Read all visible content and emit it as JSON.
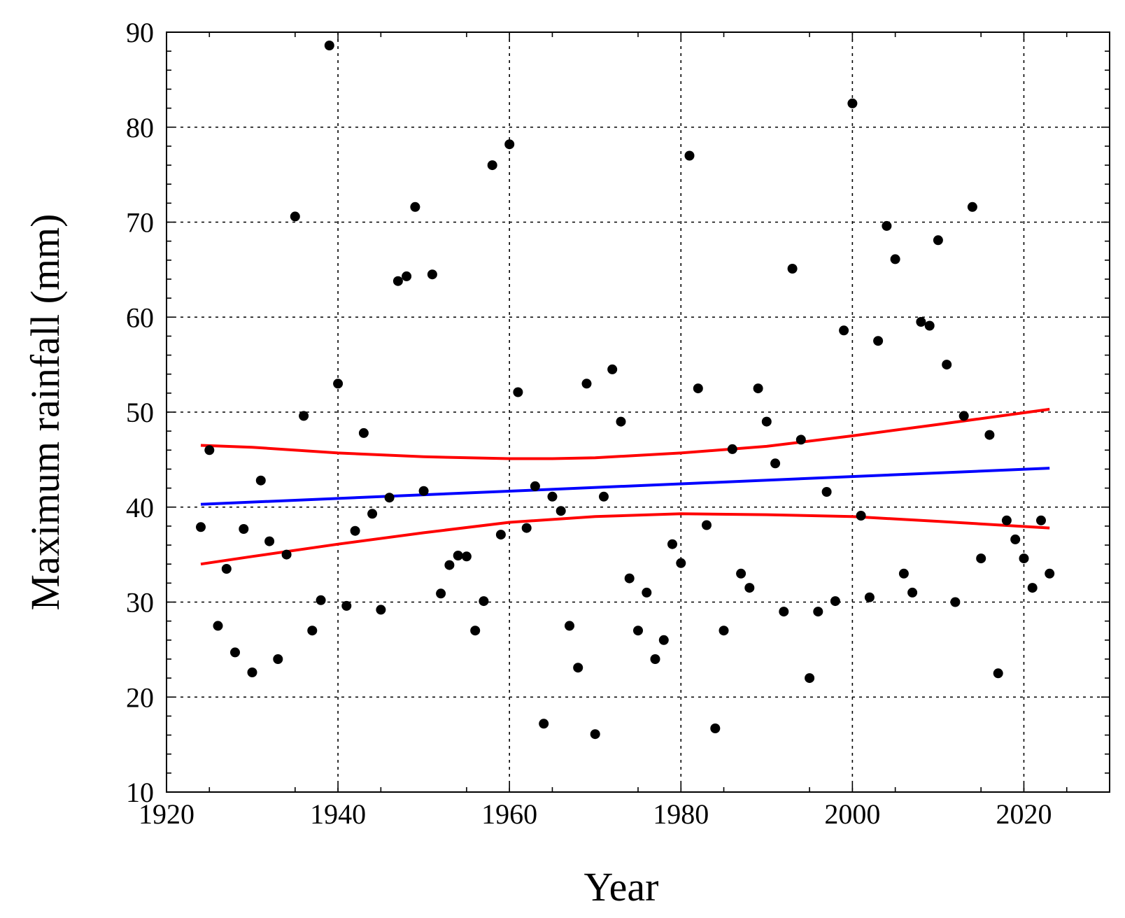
{
  "chart_data": {
    "type": "scatter",
    "title": "",
    "xlabel": "Year",
    "ylabel": "Maximum rainfall  (mm)",
    "xlim": [
      1920,
      2030
    ],
    "ylim": [
      10,
      90
    ],
    "xticks": [
      1920,
      1940,
      1960,
      1980,
      2000,
      2020
    ],
    "yticks": [
      10,
      20,
      30,
      40,
      50,
      60,
      70,
      80,
      90
    ],
    "grid": true,
    "legend": "none",
    "series": [
      {
        "kind": "scatter",
        "color": "#000000",
        "points": [
          [
            1924,
            37.9
          ],
          [
            1925,
            46.0
          ],
          [
            1926,
            27.5
          ],
          [
            1927,
            33.5
          ],
          [
            1928,
            24.7
          ],
          [
            1929,
            37.7
          ],
          [
            1930,
            22.6
          ],
          [
            1931,
            42.8
          ],
          [
            1932,
            36.4
          ],
          [
            1933,
            24.0
          ],
          [
            1934,
            35.0
          ],
          [
            1935,
            70.6
          ],
          [
            1936,
            49.6
          ],
          [
            1937,
            27.0
          ],
          [
            1938,
            30.2
          ],
          [
            1939,
            88.6
          ],
          [
            1940,
            53.0
          ],
          [
            1941,
            29.6
          ],
          [
            1942,
            37.5
          ],
          [
            1943,
            47.8
          ],
          [
            1944,
            39.3
          ],
          [
            1945,
            29.2
          ],
          [
            1946,
            41.0
          ],
          [
            1947,
            63.8
          ],
          [
            1948,
            64.3
          ],
          [
            1949,
            71.6
          ],
          [
            1950,
            41.7
          ],
          [
            1951,
            64.5
          ],
          [
            1952,
            30.9
          ],
          [
            1953,
            33.9
          ],
          [
            1954,
            34.9
          ],
          [
            1955,
            34.8
          ],
          [
            1956,
            27.0
          ],
          [
            1957,
            30.1
          ],
          [
            1958,
            76.0
          ],
          [
            1959,
            37.1
          ],
          [
            1960,
            78.2
          ],
          [
            1961,
            52.1
          ],
          [
            1962,
            37.8
          ],
          [
            1963,
            42.2
          ],
          [
            1964,
            17.2
          ],
          [
            1965,
            41.1
          ],
          [
            1966,
            39.6
          ],
          [
            1967,
            27.5
          ],
          [
            1968,
            23.1
          ],
          [
            1969,
            53.0
          ],
          [
            1970,
            16.1
          ],
          [
            1971,
            41.1
          ],
          [
            1972,
            54.5
          ],
          [
            1973,
            49.0
          ],
          [
            1974,
            32.5
          ],
          [
            1975,
            27.0
          ],
          [
            1976,
            31.0
          ],
          [
            1977,
            24.0
          ],
          [
            1978,
            26.0
          ],
          [
            1979,
            36.1
          ],
          [
            1980,
            34.1
          ],
          [
            1981,
            77.0
          ],
          [
            1982,
            52.5
          ],
          [
            1983,
            38.1
          ],
          [
            1984,
            16.7
          ],
          [
            1985,
            27.0
          ],
          [
            1986,
            46.1
          ],
          [
            1987,
            33.0
          ],
          [
            1988,
            31.5
          ],
          [
            1989,
            52.5
          ],
          [
            1990,
            49.0
          ],
          [
            1991,
            44.6
          ],
          [
            1992,
            29.0
          ],
          [
            1993,
            65.1
          ],
          [
            1994,
            47.1
          ],
          [
            1995,
            22.0
          ],
          [
            1996,
            29.0
          ],
          [
            1997,
            41.6
          ],
          [
            1998,
            30.1
          ],
          [
            1999,
            58.6
          ],
          [
            2000,
            82.5
          ],
          [
            2001,
            39.1
          ],
          [
            2002,
            30.5
          ],
          [
            2003,
            57.5
          ],
          [
            2004,
            69.6
          ],
          [
            2005,
            66.1
          ],
          [
            2006,
            33.0
          ],
          [
            2007,
            31.0
          ],
          [
            2008,
            59.5
          ],
          [
            2009,
            59.1
          ],
          [
            2010,
            68.1
          ],
          [
            2011,
            55.0
          ],
          [
            2012,
            30.0
          ],
          [
            2013,
            49.6
          ],
          [
            2014,
            71.6
          ],
          [
            2015,
            34.6
          ],
          [
            2016,
            47.6
          ],
          [
            2017,
            22.5
          ],
          [
            2018,
            38.6
          ],
          [
            2019,
            36.6
          ],
          [
            2020,
            34.6
          ],
          [
            2021,
            31.5
          ],
          [
            2022,
            38.6
          ],
          [
            2023,
            33.0
          ]
        ]
      },
      {
        "kind": "line",
        "color": "#0000ff",
        "points": [
          [
            1924,
            40.3
          ],
          [
            2023,
            44.1
          ]
        ]
      },
      {
        "kind": "line",
        "color": "#ff0000",
        "points": [
          [
            1924,
            46.5
          ],
          [
            1930,
            46.3
          ],
          [
            1940,
            45.7
          ],
          [
            1950,
            45.3
          ],
          [
            1960,
            45.1
          ],
          [
            1965,
            45.1
          ],
          [
            1970,
            45.2
          ],
          [
            1980,
            45.7
          ],
          [
            1990,
            46.4
          ],
          [
            2000,
            47.5
          ],
          [
            2010,
            48.7
          ],
          [
            2023,
            50.3
          ]
        ]
      },
      {
        "kind": "line",
        "color": "#ff0000",
        "points": [
          [
            1924,
            34.0
          ],
          [
            1930,
            34.8
          ],
          [
            1940,
            36.1
          ],
          [
            1950,
            37.3
          ],
          [
            1960,
            38.4
          ],
          [
            1970,
            39.0
          ],
          [
            1980,
            39.3
          ],
          [
            1990,
            39.2
          ],
          [
            2000,
            39.0
          ],
          [
            2010,
            38.5
          ],
          [
            2023,
            37.8
          ]
        ]
      }
    ]
  }
}
